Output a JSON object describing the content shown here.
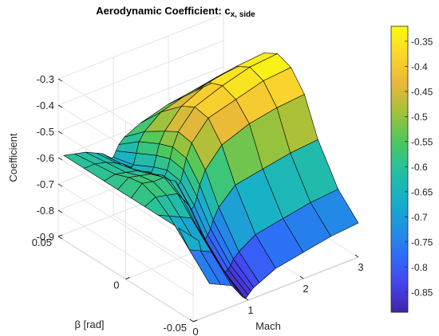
{
  "chart_data": {
    "type": "surface",
    "title": "Aerodynamic Coefficient: c",
    "title_subscript": "x, side",
    "xlabel": "Mach",
    "ylabel": "β [rad]",
    "zlabel": "Coefficient",
    "xlim": [
      0,
      3
    ],
    "ylim": [
      -0.05,
      0.05
    ],
    "zlim": [
      -0.9,
      -0.3
    ],
    "x_ticks": [
      "0",
      "1",
      "2",
      "3"
    ],
    "y_ticks": [
      "-0.05",
      "0",
      "0.05"
    ],
    "z_ticks": [
      "-0.9",
      "-0.8",
      "-0.7",
      "-0.6",
      "-0.5",
      "-0.4",
      "-0.3"
    ],
    "grid": true,
    "mach": [
      0.1,
      0.3,
      0.5,
      0.7,
      0.8,
      0.9,
      0.95,
      1.0,
      1.05,
      1.1,
      1.2,
      1.5,
      2.0,
      2.5,
      3.0
    ],
    "beta": [
      -0.05,
      -0.035,
      -0.02,
      -0.01,
      0,
      0.01,
      0.02,
      0.035,
      0.05
    ],
    "z": [
      [
        -0.6,
        -0.6,
        -0.6,
        -0.6,
        -0.6,
        -0.6,
        -0.6,
        -0.6,
        -0.6
      ],
      [
        -0.78,
        -0.7,
        -0.62,
        -0.58,
        -0.56,
        -0.57,
        -0.59,
        -0.6,
        -0.61
      ],
      [
        -0.8,
        -0.72,
        -0.64,
        -0.59,
        -0.57,
        -0.58,
        -0.6,
        -0.61,
        -0.62
      ],
      [
        -0.82,
        -0.74,
        -0.66,
        -0.6,
        -0.57,
        -0.59,
        -0.61,
        -0.63,
        -0.64
      ],
      [
        -0.85,
        -0.78,
        -0.7,
        -0.63,
        -0.59,
        -0.6,
        -0.62,
        -0.64,
        -0.65
      ],
      [
        -0.88,
        -0.82,
        -0.74,
        -0.66,
        -0.6,
        -0.61,
        -0.63,
        -0.66,
        -0.67
      ],
      [
        -0.89,
        -0.84,
        -0.76,
        -0.68,
        -0.62,
        -0.62,
        -0.64,
        -0.67,
        -0.68
      ],
      [
        -0.88,
        -0.83,
        -0.75,
        -0.67,
        -0.61,
        -0.6,
        -0.62,
        -0.66,
        -0.68
      ],
      [
        -0.87,
        -0.82,
        -0.73,
        -0.64,
        -0.57,
        -0.56,
        -0.58,
        -0.62,
        -0.66
      ],
      [
        -0.86,
        -0.8,
        -0.7,
        -0.6,
        -0.53,
        -0.52,
        -0.54,
        -0.58,
        -0.64
      ],
      [
        -0.85,
        -0.78,
        -0.66,
        -0.55,
        -0.48,
        -0.47,
        -0.5,
        -0.55,
        -0.62
      ],
      [
        -0.82,
        -0.74,
        -0.6,
        -0.48,
        -0.41,
        -0.4,
        -0.43,
        -0.5,
        -0.59
      ],
      [
        -0.8,
        -0.72,
        -0.58,
        -0.44,
        -0.38,
        -0.36,
        -0.38,
        -0.47,
        -0.56
      ],
      [
        -0.78,
        -0.7,
        -0.56,
        -0.42,
        -0.35,
        -0.33,
        -0.36,
        -0.45,
        -0.55
      ],
      [
        -0.77,
        -0.69,
        -0.55,
        -0.41,
        -0.34,
        -0.32,
        -0.35,
        -0.44,
        -0.54
      ]
    ],
    "colorbar": {
      "range": [
        -0.89,
        -0.32
      ],
      "ticks": [
        "-0.35",
        "-0.4",
        "-0.45",
        "-0.5",
        "-0.55",
        "-0.6",
        "-0.65",
        "-0.7",
        "-0.75",
        "-0.8",
        "-0.85"
      ],
      "colormap": "parula",
      "colors": [
        "#3e26a8",
        "#4743f0",
        "#2e6ef9",
        "#1f94e0",
        "#17b1c7",
        "#26c09e",
        "#4ec85d",
        "#a5c138",
        "#e9b73a",
        "#fbd62b",
        "#f9fb0e"
      ]
    }
  }
}
